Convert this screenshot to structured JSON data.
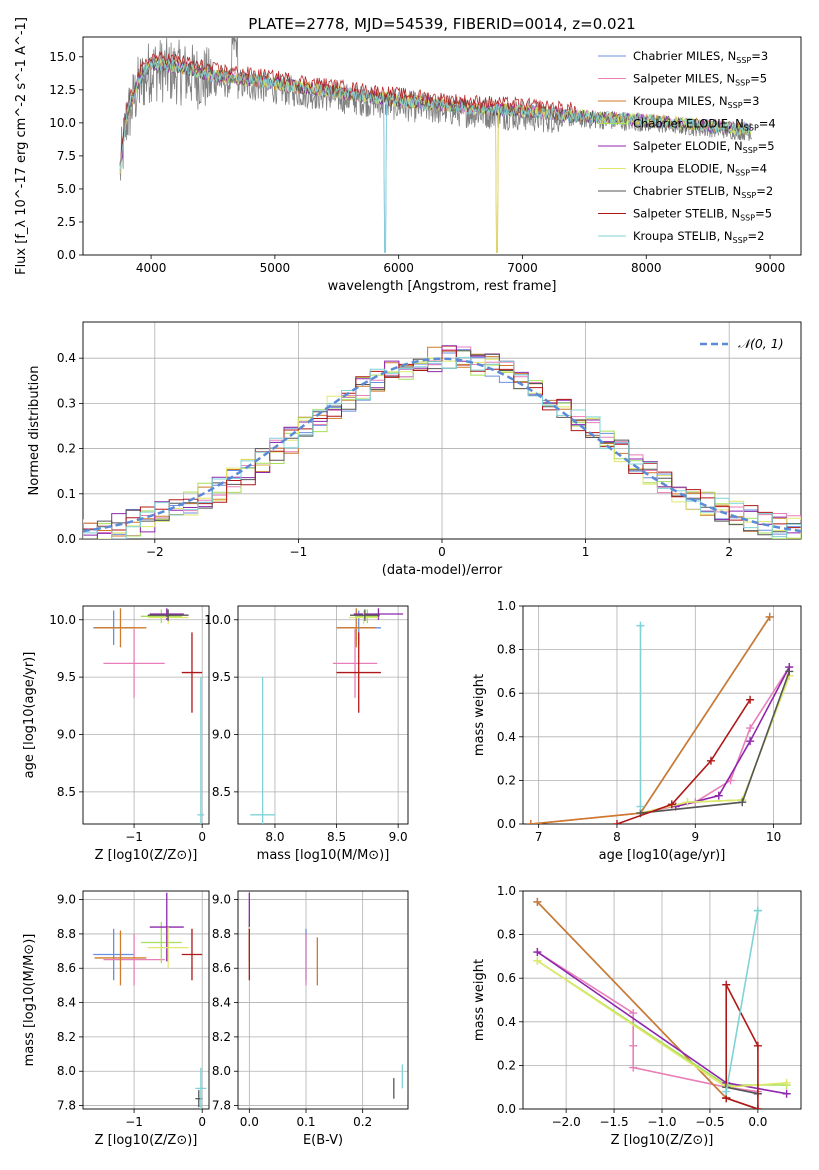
{
  "figure": {
    "title": "PLATE=2778, MJD=54539, FIBERID=0014, z=0.021"
  },
  "models": [
    {
      "name": "Chabrier MILES",
      "nssp": "3",
      "color": "#6b8fe0"
    },
    {
      "name": "Salpeter MILES",
      "nssp": "5",
      "color": "#e87fb8"
    },
    {
      "name": "Kroupa MILES",
      "nssp": "3",
      "color": "#cf7a2a"
    },
    {
      "name": "Chabrier ELODIE",
      "nssp": "4",
      "color": "#a6e05a"
    },
    {
      "name": "Salpeter ELODIE",
      "nssp": "5",
      "color": "#8e27ad"
    },
    {
      "name": "Kroupa ELODIE",
      "nssp": "4",
      "color": "#dfe86a"
    },
    {
      "name": "Chabrier STELIB",
      "nssp": "2",
      "color": "#555555"
    },
    {
      "name": "Salpeter STELIB",
      "nssp": "5",
      "color": "#b01818"
    },
    {
      "name": "Kroupa STELIB",
      "nssp": "2",
      "color": "#7fd3d6"
    }
  ],
  "chart_data": [
    {
      "id": "spectrum",
      "type": "line",
      "xlabel": "wavelength [Angstrom, rest frame]",
      "ylabel": "Flux [f_λ 10^-17 erg cm^-2 s^-1 A^-1]",
      "xlim": [
        3450,
        9250
      ],
      "ylim": [
        0,
        16.5
      ],
      "xticks": [
        4000,
        5000,
        6000,
        7000,
        8000,
        9000
      ],
      "yticks": [
        0.0,
        2.5,
        5.0,
        7.5,
        10.0,
        12.5,
        15.0
      ],
      "legend_position": "top-right",
      "continuum": {
        "x": [
          3750,
          3800,
          3900,
          4000,
          4200,
          4500,
          5000,
          5500,
          6000,
          6500,
          7000,
          7500,
          8000,
          8500,
          8850
        ],
        "y": [
          6.5,
          10.5,
          13.2,
          14.5,
          14.3,
          13.6,
          13.0,
          12.3,
          11.7,
          11.2,
          10.9,
          10.5,
          10.2,
          9.8,
          9.5
        ]
      }
    },
    {
      "id": "residual_histogram",
      "type": "line",
      "xlabel": "(data-model)/error",
      "ylabel": "Normed distribution",
      "xlim": [
        -2.5,
        2.5
      ],
      "ylim": [
        0,
        0.48
      ],
      "xticks": [
        -2,
        -1,
        0,
        1,
        2
      ],
      "yticks": [
        0.0,
        0.1,
        0.2,
        0.3,
        0.4
      ],
      "grid": true,
      "reference_curve": "𝒩(0, 1)",
      "reference_color": "#5b8bd6",
      "legend_position": "top-right",
      "bin_width": 0.1
    },
    {
      "id": "age_vs_Z",
      "type": "scatter",
      "xlabel": "Z [log10(Z/Z⊙)]",
      "ylabel": "age  [log10(age/yr)]",
      "xlim": [
        -1.75,
        0.1
      ],
      "ylim": [
        8.22,
        10.12
      ],
      "xticks": [
        -1,
        0
      ],
      "yticks": [
        8.5,
        9.0,
        9.5,
        10.0
      ],
      "points": [
        {
          "model": 0,
          "x": -1.3,
          "y": 9.93,
          "xerr": 0.3,
          "yerr": 0.15
        },
        {
          "model": 1,
          "x": -1.0,
          "y": 9.62,
          "xerr": 0.45,
          "yerr": 0.3
        },
        {
          "model": 2,
          "x": -1.2,
          "y": 9.93,
          "xerr": 0.38,
          "yerr": 0.17
        },
        {
          "model": 3,
          "x": -0.6,
          "y": 10.03,
          "xerr": 0.3,
          "yerr": 0.06
        },
        {
          "model": 4,
          "x": -0.52,
          "y": 10.05,
          "xerr": 0.25,
          "yerr": 0.05
        },
        {
          "model": 5,
          "x": -0.5,
          "y": 10.02,
          "xerr": 0.3,
          "yerr": 0.06
        },
        {
          "model": 6,
          "x": -0.5,
          "y": 10.04,
          "xerr": 0.3,
          "yerr": 0.05
        },
        {
          "model": 7,
          "x": -0.15,
          "y": 9.54,
          "xerr": 0.15,
          "yerr": 0.35
        },
        {
          "model": 8,
          "x": -0.02,
          "y": 8.3,
          "xerr": 0.05,
          "yerr": 1.2
        }
      ]
    },
    {
      "id": "age_vs_mass",
      "type": "scatter",
      "xlabel": "mass [log10(M/M⊙)]",
      "ylabel": "",
      "xlim": [
        7.7,
        9.08
      ],
      "ylim": [
        8.22,
        10.12
      ],
      "xticks": [
        8.0,
        8.5,
        9.0
      ],
      "yticks": [
        8.5,
        9.0,
        9.5,
        10.0
      ],
      "points": [
        {
          "model": 0,
          "x": 8.68,
          "y": 9.93,
          "xerr": 0.18,
          "yerr": 0.15
        },
        {
          "model": 1,
          "x": 8.65,
          "y": 9.62,
          "xerr": 0.18,
          "yerr": 0.3
        },
        {
          "model": 2,
          "x": 8.66,
          "y": 9.93,
          "xerr": 0.16,
          "yerr": 0.17
        },
        {
          "model": 3,
          "x": 8.75,
          "y": 10.03,
          "xerr": 0.1,
          "yerr": 0.06
        },
        {
          "model": 4,
          "x": 8.84,
          "y": 10.05,
          "xerr": 0.2,
          "yerr": 0.05
        },
        {
          "model": 5,
          "x": 8.72,
          "y": 10.02,
          "xerr": 0.12,
          "yerr": 0.06
        },
        {
          "model": 6,
          "x": 8.73,
          "y": 10.04,
          "xerr": 0.12,
          "yerr": 0.05
        },
        {
          "model": 7,
          "x": 8.68,
          "y": 9.54,
          "xerr": 0.18,
          "yerr": 0.35
        },
        {
          "model": 8,
          "x": 7.9,
          "y": 8.3,
          "xerr": 0.1,
          "yerr": 1.2
        }
      ]
    },
    {
      "id": "weight_vs_age",
      "type": "line",
      "xlabel": "age  [log10(age/yr)]",
      "ylabel": "mass weight",
      "xlim": [
        6.8,
        10.35
      ],
      "ylim": [
        0,
        1.0
      ],
      "xticks": [
        7,
        8,
        9,
        10
      ],
      "yticks": [
        0.0,
        0.2,
        0.4,
        0.6,
        0.8,
        1.0
      ],
      "grid": true,
      "series": [
        {
          "model": 0,
          "x": [
            8.3,
            9.95
          ],
          "y": [
            0.05,
            0.95
          ]
        },
        {
          "model": 1,
          "x": [
            6.9,
            8.3,
            9.0,
            9.45,
            9.7,
            10.2
          ],
          "y": [
            0.0,
            0.05,
            0.1,
            0.2,
            0.44,
            0.72
          ]
        },
        {
          "model": 2,
          "x": [
            6.9,
            8.3,
            9.95
          ],
          "y": [
            0.0,
            0.05,
            0.95
          ]
        },
        {
          "model": 3,
          "x": [
            8.3,
            8.9,
            9.6,
            10.2
          ],
          "y": [
            0.05,
            0.1,
            0.11,
            0.68
          ]
        },
        {
          "model": 4,
          "x": [
            8.75,
            9.3,
            9.7,
            10.2
          ],
          "y": [
            0.08,
            0.13,
            0.38,
            0.72
          ]
        },
        {
          "model": 5,
          "x": [
            8.3,
            8.9,
            9.6,
            10.2
          ],
          "y": [
            0.05,
            0.1,
            0.11,
            0.68
          ]
        },
        {
          "model": 6,
          "x": [
            8.3,
            9.6,
            10.2
          ],
          "y": [
            0.05,
            0.1,
            0.7
          ]
        },
        {
          "model": 7,
          "x": [
            8.0,
            8.7,
            9.2,
            9.7
          ],
          "y": [
            0.0,
            0.09,
            0.29,
            0.57
          ]
        },
        {
          "model": 8,
          "x": [
            8.3,
            8.3
          ],
          "y": [
            0.08,
            0.91
          ]
        }
      ]
    },
    {
      "id": "mass_vs_Z",
      "type": "scatter",
      "xlabel": "Z [log10(Z/Z⊙)]",
      "ylabel": "mass [log10(M/M⊙)]",
      "xlim": [
        -1.75,
        0.1
      ],
      "ylim": [
        7.78,
        9.05
      ],
      "xticks": [
        -1,
        0
      ],
      "yticks": [
        7.8,
        8.0,
        8.2,
        8.4,
        8.6,
        8.8,
        9.0
      ],
      "points": [
        {
          "model": 0,
          "x": -1.3,
          "y": 8.68,
          "xerr": 0.3,
          "yerr": 0.15
        },
        {
          "model": 1,
          "x": -1.0,
          "y": 8.65,
          "xerr": 0.45,
          "yerr": 0.15
        },
        {
          "model": 2,
          "x": -1.2,
          "y": 8.66,
          "xerr": 0.38,
          "yerr": 0.16
        },
        {
          "model": 3,
          "x": -0.6,
          "y": 8.75,
          "xerr": 0.3,
          "yerr": 0.12
        },
        {
          "model": 4,
          "x": -0.52,
          "y": 8.84,
          "xerr": 0.25,
          "yerr": 0.2
        },
        {
          "model": 5,
          "x": -0.5,
          "y": 8.72,
          "xerr": 0.3,
          "yerr": 0.12
        },
        {
          "model": 6,
          "x": -0.05,
          "y": 7.84,
          "xerr": 0.05,
          "yerr": 0.05
        },
        {
          "model": 7,
          "x": -0.15,
          "y": 8.68,
          "xerr": 0.15,
          "yerr": 0.15
        },
        {
          "model": 8,
          "x": -0.02,
          "y": 7.9,
          "xerr": 0.08,
          "yerr": 0.12
        }
      ]
    },
    {
      "id": "mass_vs_ebv",
      "type": "scatter",
      "xlabel": "E(B-V)",
      "ylabel": "",
      "xlim": [
        -0.02,
        0.28
      ],
      "ylim": [
        7.78,
        9.05
      ],
      "xticks": [
        0.0,
        0.1,
        0.2
      ],
      "yticks": [
        7.8,
        8.0,
        8.2,
        8.4,
        8.6,
        8.8,
        9.0
      ],
      "points": [
        {
          "model": 0,
          "x": 0.1,
          "y": 8.68,
          "xerr": 0,
          "yerr": 0.15
        },
        {
          "model": 1,
          "x": 0.1,
          "y": 8.65,
          "xerr": 0,
          "yerr": 0.15
        },
        {
          "model": 2,
          "x": 0.12,
          "y": 8.64,
          "xerr": 0,
          "yerr": 0.14
        },
        {
          "model": 3,
          "x": 0.0,
          "y": 8.77,
          "xerr": 0,
          "yerr": 0.12
        },
        {
          "model": 4,
          "x": 0.0,
          "y": 8.84,
          "xerr": 0,
          "yerr": 0.2
        },
        {
          "model": 5,
          "x": 0.0,
          "y": 8.72,
          "xerr": 0,
          "yerr": 0.12
        },
        {
          "model": 6,
          "x": 0.255,
          "y": 7.9,
          "xerr": 0,
          "yerr": 0.06
        },
        {
          "model": 7,
          "x": 0.0,
          "y": 8.68,
          "xerr": 0,
          "yerr": 0.15
        },
        {
          "model": 8,
          "x": 0.27,
          "y": 7.97,
          "xerr": 0,
          "yerr": 0.07
        }
      ]
    },
    {
      "id": "weight_vs_Z",
      "type": "line",
      "xlabel": "Z [log10(Z/Z⊙)]",
      "ylabel": "mass weight",
      "xlim": [
        -2.45,
        0.45
      ],
      "ylim": [
        0,
        1.0
      ],
      "xticks": [
        -2.0,
        -1.5,
        -1.0,
        -0.5,
        0.0
      ],
      "yticks": [
        0.0,
        0.2,
        0.4,
        0.6,
        0.8,
        1.0
      ],
      "grid": true,
      "series": [
        {
          "model": 0,
          "x": [
            -2.3,
            -0.33,
            0.0
          ],
          "y": [
            0.95,
            0.05,
            0.0
          ]
        },
        {
          "model": 1,
          "x": [
            -2.3,
            -1.3,
            -1.3,
            -1.3,
            -0.33,
            0.0
          ],
          "y": [
            0.72,
            0.44,
            0.29,
            0.19,
            0.1,
            0.08
          ]
        },
        {
          "model": 2,
          "x": [
            -2.3,
            -0.33,
            0.0
          ],
          "y": [
            0.95,
            0.05,
            0.0
          ]
        },
        {
          "model": 3,
          "x": [
            -2.3,
            -0.33,
            0.0,
            0.3
          ],
          "y": [
            0.68,
            0.11,
            0.11,
            0.11
          ]
        },
        {
          "model": 4,
          "x": [
            -2.3,
            -0.33,
            0.3
          ],
          "y": [
            0.72,
            0.12,
            0.07
          ]
        },
        {
          "model": 5,
          "x": [
            -2.3,
            -0.33,
            0.0,
            0.3
          ],
          "y": [
            0.68,
            0.1,
            0.11,
            0.12
          ]
        },
        {
          "model": 6,
          "x": [
            -0.33,
            0.0
          ],
          "y": [
            0.1,
            0.07
          ]
        },
        {
          "model": 7,
          "x": [
            -0.33,
            -0.33,
            0.0,
            0.0,
            -0.33
          ],
          "y": [
            0.05,
            0.57,
            0.29,
            0.0,
            0.05
          ]
        },
        {
          "model": 8,
          "x": [
            -0.33,
            0.0,
            0.0
          ],
          "y": [
            0.08,
            0.91,
            0.91
          ]
        }
      ]
    }
  ]
}
